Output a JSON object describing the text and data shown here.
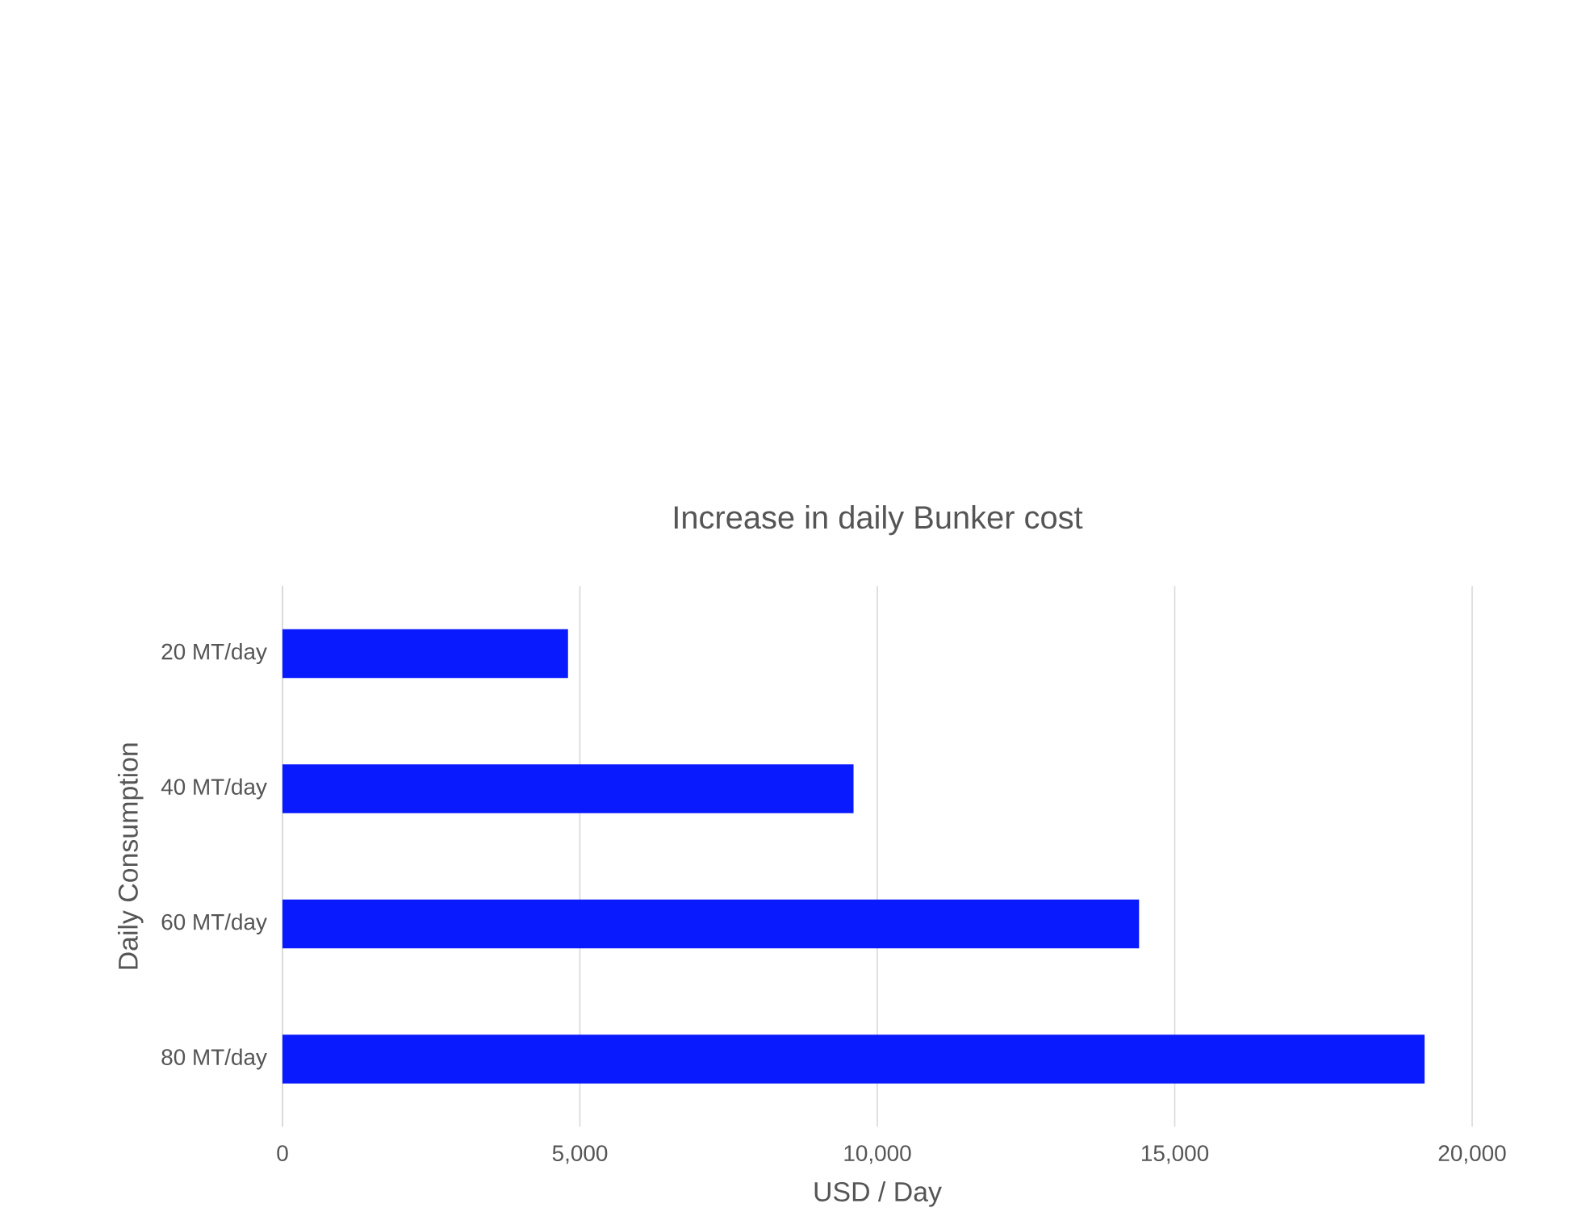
{
  "chart_data": {
    "type": "bar",
    "orientation": "horizontal",
    "title": "Increase in daily Bunker cost",
    "xlabel": "USD / Day",
    "ylabel": "Daily Consumption",
    "categories": [
      "20 MT/day",
      "40 MT/day",
      "60 MT/day",
      "80 MT/day"
    ],
    "values": [
      4800,
      9600,
      14400,
      19200
    ],
    "color": "#0a1aff",
    "xlim": [
      0,
      20000
    ],
    "xticks": [
      0,
      {
        "value": 5000,
        "label": "5,000"
      },
      {
        "value": 10000,
        "label": "10,000"
      },
      {
        "value": 15000,
        "label": "15,000"
      },
      {
        "value": 20000,
        "label": "20,000"
      }
    ],
    "grid": "x"
  }
}
